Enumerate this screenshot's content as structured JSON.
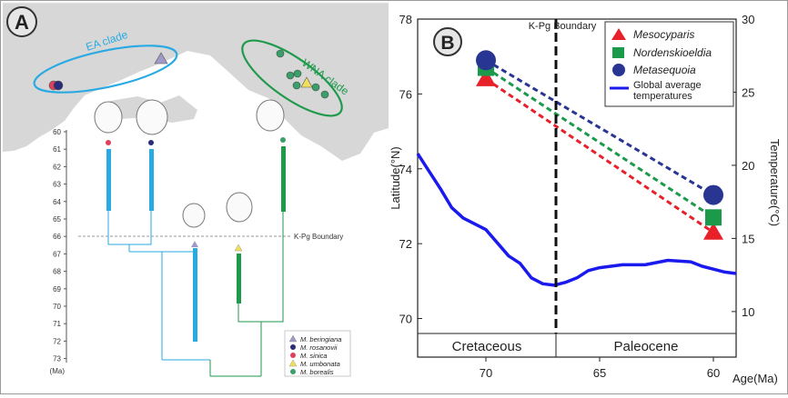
{
  "panel_a": {
    "badge": "A",
    "ea_clade": "EA clade",
    "wna_clade": "WNA clade",
    "kpg_label": "K-Pg Boundary",
    "axis_ticks": [
      "60",
      "61",
      "62",
      "63",
      "64",
      "65",
      "66",
      "67",
      "68",
      "69",
      "70",
      "71",
      "72",
      "73"
    ],
    "axis_unit": "(Ma)",
    "legend": [
      {
        "label": "M. beringiana",
        "marker": "triangle",
        "color": "#9e9ac8"
      },
      {
        "label": "M. rosanovii",
        "marker": "circle",
        "color": "#2b2b7a"
      },
      {
        "label": "M. sinica",
        "marker": "circle",
        "color": "#e0405a"
      },
      {
        "label": "M. umbonata",
        "marker": "triangle",
        "color": "#f2e05c"
      },
      {
        "label": "M. borealis",
        "marker": "circle",
        "color": "#3aa06a"
      }
    ],
    "colors": {
      "ea": "#2aaae2",
      "wna": "#1f9a4b"
    }
  },
  "panel_b": {
    "badge": "B",
    "kpg_label": "K-Pg Boundary",
    "periods": [
      "Cretaceous",
      "Paleocene"
    ],
    "legend": [
      "Mesocyparis",
      "Nordenskioeldia",
      "Metasequoia",
      "Global average temperatures"
    ],
    "colors": {
      "mesocyparis": "#e8202a",
      "nordenskioeldia": "#1a9a4a",
      "metasequoia": "#283593",
      "temperature": "#1a1aee"
    }
  },
  "chart_data": {
    "type": "line",
    "x_label": "Age(Ma)",
    "y_label": "Latitude(°N)",
    "y2_label": "Temperature(°C)",
    "x_ticks": [
      "70",
      "65",
      "60"
    ],
    "y_ticks": [
      "70",
      "72",
      "74",
      "76",
      "78"
    ],
    "y2_ticks": [
      "10",
      "15",
      "20",
      "25",
      "30"
    ],
    "xlim": [
      73,
      59
    ],
    "ylim": [
      69.6,
      78
    ],
    "y2lim": [
      8.5,
      30
    ],
    "series": [
      {
        "name": "Mesocyparis",
        "axis": "latitude",
        "marker": "triangle",
        "x": [
          70,
          60
        ],
        "y": [
          76.4,
          72.3
        ]
      },
      {
        "name": "Nordenskioeldia",
        "axis": "latitude",
        "marker": "square",
        "x": [
          70,
          60
        ],
        "y": [
          76.7,
          72.7
        ]
      },
      {
        "name": "Metasequoia",
        "axis": "latitude",
        "marker": "circle",
        "x": [
          70,
          60
        ],
        "y": [
          76.9,
          73.3
        ]
      },
      {
        "name": "Global average temperatures",
        "axis": "temperature",
        "x": [
          73,
          72.5,
          72,
          71.5,
          71,
          70.5,
          70,
          69.5,
          69,
          68.5,
          68,
          67.5,
          67,
          66.5,
          66,
          65.5,
          65,
          64,
          63,
          62,
          61,
          60.5,
          60,
          59.5,
          59
        ],
        "y": [
          20.8,
          19.6,
          18.4,
          17.1,
          16.4,
          16.0,
          15.6,
          14.7,
          13.8,
          13.3,
          12.3,
          11.9,
          11.8,
          12.0,
          12.3,
          12.8,
          13.0,
          13.2,
          13.2,
          13.5,
          13.4,
          13.1,
          12.9,
          12.7,
          12.6
        ]
      }
    ]
  }
}
